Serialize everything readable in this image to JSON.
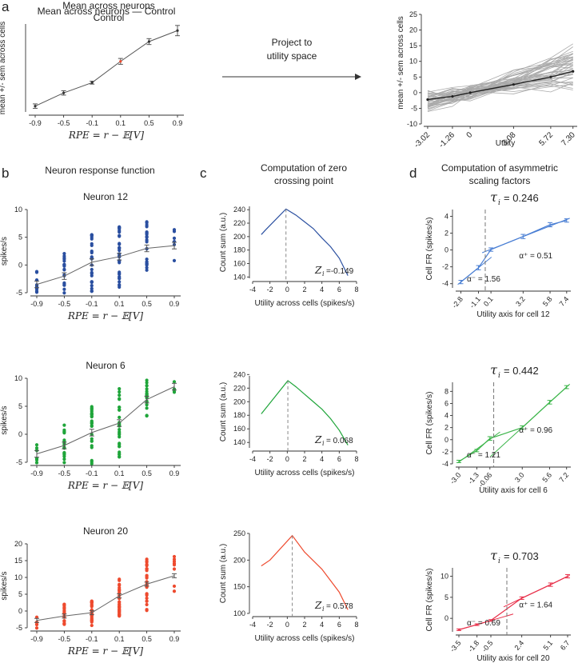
{
  "colors": {
    "blue": "#2a4fa0",
    "green": "#1fa53a",
    "red": "#ee4a2e",
    "lblue": "#4a7fd4",
    "lgreen": "#3cb54a",
    "lred": "#e8304a",
    "gray": "#aaaaaa",
    "black": "#333333"
  },
  "panels": {
    "a": {
      "letter": "a",
      "title1": "Mean across neurons",
      "title2": "Control",
      "arrow_label1": "Project to",
      "arrow_label2": "utility space"
    },
    "b": {
      "letter": "b",
      "title": "Neuron response function"
    },
    "c": {
      "letter": "c",
      "title1": "Computation of zero",
      "title2": "crossing point"
    },
    "d": {
      "letter": "d",
      "title1": "Computation of asymmetric",
      "title2": "scaling factors"
    }
  },
  "chart_data": [
    {
      "id": "a_left",
      "type": "line",
      "title": "Mean across neurons — Control",
      "xlabel": "RPE = r − 𝔼[V]",
      "ylabel": "mean +/- sem across cells",
      "x": [
        "-0.9",
        "-0.5",
        "-0.1",
        "0.1",
        "0.5",
        "0.9"
      ],
      "y": [
        -3.2,
        -1.4,
        0.0,
        2.9,
        5.6,
        7.1
      ],
      "err": [
        0.3,
        0.3,
        0.2,
        0.4,
        0.4,
        0.7
      ],
      "ylim": [
        -4,
        8
      ]
    },
    {
      "id": "a_right",
      "type": "line",
      "xlabel": "Utility",
      "ylabel": "mean +/- sem across cells",
      "xticks": [
        "-3.02",
        "-1.26",
        "0",
        "3.08",
        "5.72",
        "7.30"
      ],
      "x": [
        -3.02,
        -1.26,
        0,
        3.08,
        5.72,
        7.3
      ],
      "y": [
        -2.2,
        -1.2,
        0,
        2.6,
        5.0,
        6.8
      ],
      "xlim": [
        -3.3,
        7.6
      ],
      "ylim": [
        -10,
        25
      ],
      "yticks": [
        "-10",
        "-5",
        "0",
        "5",
        "10",
        "15",
        "20",
        "25"
      ]
    },
    {
      "id": "b1",
      "type": "scatter",
      "title": "Neuron 12",
      "ylabel": "spikes/s",
      "xlabel": "RPE = r − 𝔼[V]",
      "categories": [
        "-0.9",
        "-0.5",
        "-0.1",
        "0.1",
        "0.5",
        "0.9"
      ],
      "means": [
        -3.5,
        -2.0,
        0.5,
        1.5,
        3.0,
        3.5
      ],
      "ylim": [
        -5,
        10
      ],
      "yticks": [
        "-5",
        "0",
        "5",
        "10"
      ]
    },
    {
      "id": "b2",
      "type": "scatter",
      "title": "Neuron 6",
      "ylabel": "spikes/s",
      "xlabel": "RPE = r − 𝔼[V]",
      "categories": [
        "-0.9",
        "-0.5",
        "-0.1",
        "0.1",
        "0.5",
        "0.9"
      ],
      "means": [
        -3.5,
        -2.0,
        0.3,
        2.0,
        6.2,
        8.5
      ],
      "ylim": [
        -5,
        10
      ],
      "yticks": [
        "-5",
        "0",
        "5",
        "10"
      ]
    },
    {
      "id": "b3",
      "type": "scatter",
      "title": "Neuron 20",
      "ylabel": "spikes/s",
      "xlabel": "RPE = r − 𝔼[V]",
      "categories": [
        "-0.9",
        "-0.5",
        "-0.1",
        "0.1",
        "0.5",
        "0.9"
      ],
      "means": [
        -2.8,
        -1.5,
        -0.5,
        4.5,
        8.0,
        10.5
      ],
      "ylim": [
        -5,
        20
      ],
      "yticks": [
        "-5",
        "0",
        "5",
        "10",
        "15",
        "20"
      ]
    },
    {
      "id": "c1",
      "type": "line",
      "ylabel": "Count sum (a.u.)",
      "xlabel": "Utility across cells (spikes/s)",
      "x": [
        -3,
        -2.5,
        -0.149,
        1,
        2,
        3,
        4,
        5,
        6,
        7
      ],
      "y": [
        203,
        210,
        241,
        232,
        222,
        212,
        198,
        185,
        168,
        142
      ],
      "zero_label": "Z",
      "zero_sub": "i",
      "zero_value": "=-0.149",
      "zero_x": -0.149,
      "xlim": [
        -4,
        8
      ],
      "ylim": [
        138,
        245
      ],
      "xticks": [
        "-4",
        "-2",
        "0",
        "2",
        "4",
        "6",
        "8"
      ],
      "yticks": [
        "140",
        "160",
        "180",
        "200",
        "220",
        "240"
      ]
    },
    {
      "id": "c2",
      "type": "line",
      "ylabel": "Count sum (a.u.)",
      "xlabel": "Utility across cells (spikes/s)",
      "x": [
        -3,
        -2.5,
        0.068,
        1,
        2,
        3,
        4,
        5,
        6,
        7
      ],
      "y": [
        182,
        190,
        231,
        222,
        211,
        200,
        189,
        175,
        158,
        136
      ],
      "zero_label": "Z",
      "zero_sub": "i",
      "zero_value": "= 0.068",
      "zero_x": 0.068,
      "xlim": [
        -4,
        8
      ],
      "ylim": [
        132,
        238
      ],
      "xticks": [
        "-4",
        "-2",
        "0",
        "2",
        "4",
        "6",
        "8"
      ],
      "yticks": [
        "140",
        "160",
        "180",
        "200",
        "220",
        "240"
      ]
    },
    {
      "id": "c3",
      "type": "line",
      "ylabel": "Count sum (a.u.)",
      "xlabel": "Utility across cells (spikes/s)",
      "x": [
        -3,
        -2,
        0.578,
        2,
        4,
        6,
        7
      ],
      "y": [
        189,
        200,
        246,
        215,
        183,
        140,
        107
      ],
      "zero_label": "Z",
      "zero_sub": "i",
      "zero_value": "= 0.578",
      "zero_x": 0.578,
      "xlim": [
        -4,
        8
      ],
      "ylim": [
        100,
        250
      ],
      "xticks": [
        "-4",
        "-2",
        "0",
        "2",
        "4",
        "6",
        "8"
      ],
      "yticks": [
        "100",
        "150",
        "200",
        "250"
      ]
    },
    {
      "id": "d1",
      "type": "line",
      "tau_label": "τ",
      "tau_sub": "i",
      "tau_value": "= 0.246",
      "ylabel": "Cell FR (spikes/s)",
      "xlabel": "Utility axis for cell 12",
      "xticks": [
        "-2.8",
        "-1.1",
        "0.1",
        "3.2",
        "5.8",
        "7.4"
      ],
      "x": [
        -2.8,
        -1.1,
        0.1,
        3.2,
        5.8,
        7.4
      ],
      "y": [
        -3.8,
        -2.1,
        0.05,
        1.6,
        3.0,
        3.5
      ],
      "err": [
        0.2,
        0.25,
        0.2,
        0.25,
        0.25,
        0.2
      ],
      "xlim": [
        -3.3,
        7.8
      ],
      "ylim": [
        -4.5,
        4.8
      ],
      "yticks": [
        "-4",
        "-2",
        "0",
        "2",
        "4"
      ],
      "zero_x": -0.45,
      "alpha_plus": "α⁺ = 0.51",
      "alpha_minus": "α⁻ = 1.56"
    },
    {
      "id": "d2",
      "type": "line",
      "tau_label": "τ",
      "tau_sub": "i",
      "tau_value": "= 0.442",
      "ylabel": "Cell FR (spikes/s)",
      "xlabel": "Utility axis for cell 6",
      "xticks": [
        "-3.0",
        "-1.3",
        "-0.06",
        "3.0",
        "5.6",
        "7.2"
      ],
      "x": [
        -3.0,
        -1.3,
        -0.06,
        3.0,
        5.6,
        7.2
      ],
      "y": [
        -3.6,
        -1.8,
        0.2,
        2.0,
        6.2,
        8.7
      ],
      "err": [
        0.2,
        0.2,
        0.3,
        0.3,
        0.3,
        0.25
      ],
      "xlim": [
        -3.3,
        7.6
      ],
      "ylim": [
        -4,
        9.5
      ],
      "yticks": [
        "-4",
        "-2",
        "0",
        "2",
        "4",
        "6",
        "8"
      ],
      "zero_x": 0.3,
      "alpha_plus": "α⁺ = 0.96",
      "alpha_minus": "α⁻ = 1.21"
    },
    {
      "id": "d3",
      "type": "line",
      "tau_label": "τ",
      "tau_sub": "i",
      "tau_value": "= 0.703",
      "ylabel": "Cell FR (spikes/s)",
      "xlabel": "Utility axis for cell 20",
      "xticks": [
        "-3.5",
        "-1.8",
        "-0.5",
        "2.4",
        "5.1",
        "6.7"
      ],
      "x": [
        -3.5,
        -1.8,
        -0.5,
        2.4,
        5.1,
        6.7
      ],
      "y": [
        -2.7,
        -1.5,
        -0.5,
        4.8,
        8.0,
        10.0
      ],
      "err": [
        0.2,
        0.2,
        0.2,
        0.3,
        0.4,
        0.4
      ],
      "xlim": [
        -3.8,
        7.0
      ],
      "ylim": [
        -3.2,
        12
      ],
      "yticks": [
        "0",
        "5",
        "10"
      ],
      "zero_x": 1.0,
      "alpha_plus": "α⁺ = 1.64",
      "alpha_minus": "α⁻ = 0.69"
    }
  ]
}
